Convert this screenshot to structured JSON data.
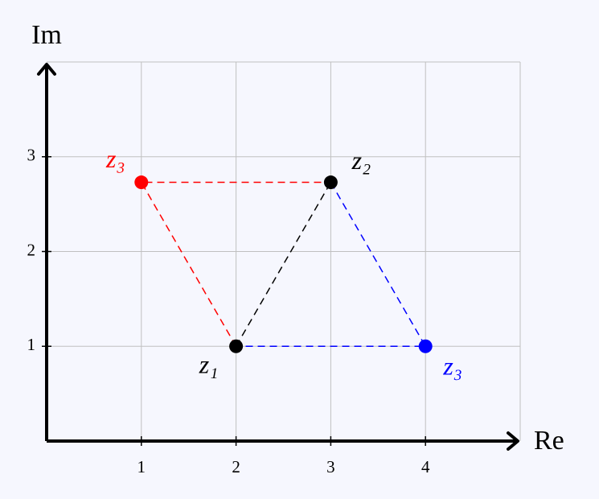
{
  "chart_data": {
    "type": "scatter",
    "x_label": "Re",
    "y_label": "Im",
    "xlim": [
      0,
      5
    ],
    "ylim": [
      0,
      4
    ],
    "xticks": [
      1,
      2,
      3,
      4
    ],
    "yticks": [
      1,
      2,
      3
    ],
    "grid": true,
    "points": [
      {
        "name": "z₁",
        "x": 2,
        "y": 1,
        "color": "#000000"
      },
      {
        "name": "z₂",
        "x": 3,
        "y": 2.73,
        "color": "#000000"
      },
      {
        "name": "z₃",
        "x": 1,
        "y": 2.73,
        "color": "#ff0000"
      },
      {
        "name": "z₃",
        "x": 4,
        "y": 1,
        "color": "#0000ff"
      }
    ],
    "segments": [
      {
        "color": "#ff0000",
        "x": [
          2,
          1,
          3
        ],
        "y": [
          1,
          2.73,
          2.73
        ]
      },
      {
        "color": "#000000",
        "x": [
          2,
          3
        ],
        "y": [
          1,
          2.73
        ]
      },
      {
        "color": "#0000ff",
        "x": [
          3,
          4,
          2
        ],
        "y": [
          2.73,
          1,
          1
        ]
      }
    ]
  }
}
